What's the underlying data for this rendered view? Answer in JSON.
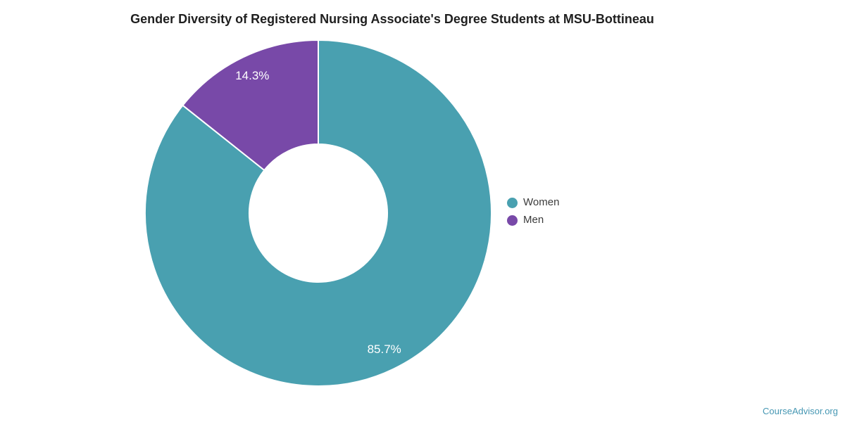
{
  "title": "Gender Diversity of Registered Nursing Associate's Degree Students at MSU-Bottineau",
  "footer": {
    "brand": "CourseAdvisor.org",
    "brand_color": "#4697B3"
  },
  "colors": {
    "background": "#FFFFFF",
    "title_text": "#1F1F1F",
    "legend_text": "#3B3B3B",
    "slice_label_text": "#FFFFFF",
    "slice_border": "#FFFFFF"
  },
  "legend": {
    "items": [
      {
        "label": "Women",
        "color": "#49A0B0"
      },
      {
        "label": "Men",
        "color": "#7849A8"
      }
    ]
  },
  "chart_data": {
    "type": "pie",
    "subtype": "donut",
    "title": "Gender Diversity of Registered Nursing Associate's Degree Students at MSU-Bottineau",
    "categories": [
      "Women",
      "Men"
    ],
    "values": [
      85.7,
      14.3
    ],
    "value_labels": [
      "85.7%",
      "14.3%"
    ],
    "slice_colors": [
      "#49A0B0",
      "#7849A8"
    ],
    "start_angle_deg": 0,
    "direction": "clockwise",
    "inner_radius_ratio": 0.4,
    "label_radius_ratio": 0.877,
    "legend_position": "right",
    "grid": false
  }
}
